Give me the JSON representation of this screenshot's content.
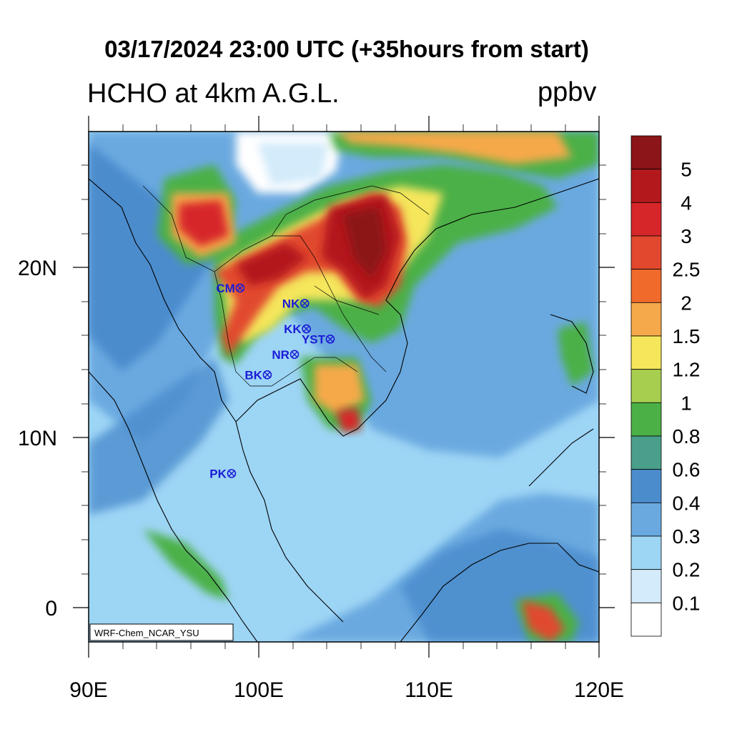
{
  "header": {
    "title": "03/17/2024 23:00 UTC (+35hours from start)",
    "left_subtitle": "HCHO at 4km A.G.L.",
    "right_subtitle": "ppbv"
  },
  "credit": "WRF-Chem_NCAR_YSU",
  "axes": {
    "x_ticks": [
      "90E",
      "100E",
      "110E",
      "120E"
    ],
    "y_ticks": [
      "20N",
      "10N",
      "0"
    ],
    "lon_range": [
      90,
      120
    ],
    "lat_range": [
      -2,
      28
    ]
  },
  "stations": [
    {
      "label": "CM",
      "lon": 98.9,
      "lat": 18.8
    },
    {
      "label": "NK",
      "lon": 102.7,
      "lat": 17.9
    },
    {
      "label": "KK",
      "lon": 102.8,
      "lat": 16.4
    },
    {
      "label": "YST",
      "lon": 104.2,
      "lat": 15.8
    },
    {
      "label": "NR",
      "lon": 102.1,
      "lat": 14.9
    },
    {
      "label": "BK",
      "lon": 100.5,
      "lat": 13.7
    },
    {
      "label": "PK",
      "lon": 98.4,
      "lat": 7.9
    }
  ],
  "legend": {
    "labels": [
      "5",
      "4",
      "3",
      "2.5",
      "2",
      "1.5",
      "1.2",
      "1",
      "0.8",
      "0.6",
      "0.4",
      "0.3",
      "0.2",
      "0.1"
    ],
    "colors": [
      "#8b1518",
      "#b3191c",
      "#d7262a",
      "#e1482e",
      "#f06a2b",
      "#f6a94a",
      "#f5e65c",
      "#a8ce50",
      "#4bb046",
      "#4a9f8a",
      "#4b8ccd",
      "#6aa9e0",
      "#9dd5f5",
      "#d3ebfa",
      "#ffffff"
    ]
  }
}
